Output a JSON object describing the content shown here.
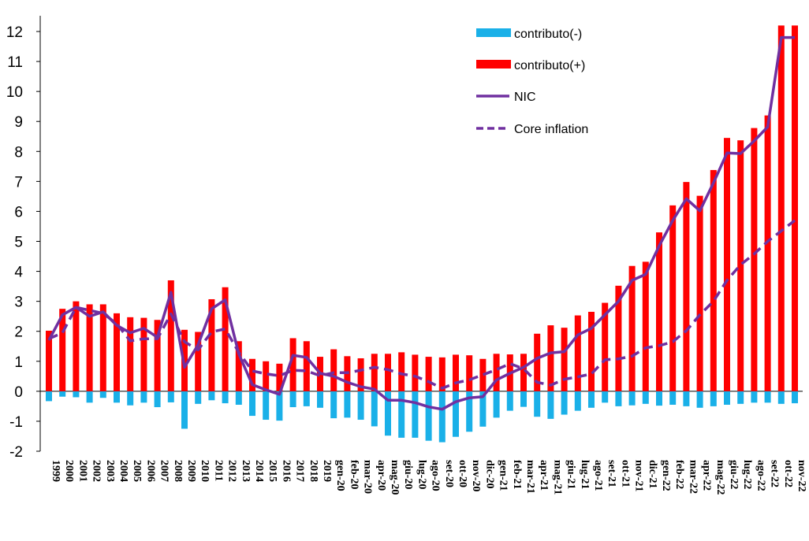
{
  "chart_data": {
    "type": "bar",
    "stacked_sign": true,
    "title": "",
    "xlabel": "",
    "ylabel": "",
    "ylim": [
      -2,
      12
    ],
    "yticks": [
      -2,
      -1,
      0,
      1,
      2,
      3,
      4,
      5,
      6,
      7,
      8,
      9,
      10,
      11,
      12
    ],
    "grid": false,
    "legend_position": "top-right",
    "categories": [
      "1999",
      "2000",
      "2001",
      "2002",
      "2003",
      "2004",
      "2005",
      "2006",
      "2007",
      "2008",
      "2009",
      "2010",
      "2011",
      "2012",
      "2013",
      "2014",
      "2015",
      "2016",
      "2017",
      "2018",
      "2019",
      "gen-20",
      "feb-20",
      "mar-20",
      "apr-20",
      "mag-20",
      "giu-20",
      "lug-20",
      "ago-20",
      "set-20",
      "ott-20",
      "nov-20",
      "dic-20",
      "gen-21",
      "feb-21",
      "mar-21",
      "apr-21",
      "mag-21",
      "giu-21",
      "lug-21",
      "ago-21",
      "set-21",
      "ott-21",
      "nov-21",
      "dic-21",
      "gen-22",
      "feb-22",
      "mar-22",
      "apr-22",
      "mag-22",
      "giu-22",
      "lug-22",
      "ago-22",
      "set-22",
      "ott-22",
      "nov-22"
    ],
    "series": [
      {
        "name": "contributo(-)",
        "kind": "bar",
        "color": "#1AB0E8",
        "values": [
          -0.33,
          -0.18,
          -0.2,
          -0.38,
          -0.22,
          -0.38,
          -0.47,
          -0.38,
          -0.53,
          -0.37,
          -1.25,
          -0.42,
          -0.3,
          -0.4,
          -0.45,
          -0.82,
          -0.95,
          -0.98,
          -0.53,
          -0.5,
          -0.55,
          -0.9,
          -0.88,
          -0.95,
          -1.17,
          -1.48,
          -1.55,
          -1.55,
          -1.65,
          -1.7,
          -1.52,
          -1.35,
          -1.18,
          -0.88,
          -0.65,
          -0.52,
          -0.85,
          -0.92,
          -0.78,
          -0.65,
          -0.55,
          -0.38,
          -0.5,
          -0.47,
          -0.42,
          -0.48,
          -0.45,
          -0.5,
          -0.55,
          -0.5,
          -0.45,
          -0.42,
          -0.38,
          -0.38,
          -0.42,
          -0.4
        ]
      },
      {
        "name": "contributo(+)",
        "kind": "bar",
        "color": "#FF0000",
        "values": [
          2.02,
          2.75,
          3.0,
          2.9,
          2.9,
          2.6,
          2.47,
          2.45,
          2.38,
          3.7,
          2.05,
          1.98,
          3.07,
          3.47,
          1.67,
          1.08,
          1.0,
          0.92,
          1.77,
          1.67,
          1.15,
          1.4,
          1.17,
          1.1,
          1.25,
          1.25,
          1.3,
          1.22,
          1.15,
          1.13,
          1.22,
          1.2,
          1.08,
          1.25,
          1.23,
          1.25,
          1.92,
          2.2,
          2.12,
          2.53,
          2.65,
          2.95,
          3.52,
          4.18,
          4.32,
          5.3,
          6.2,
          6.98,
          6.52,
          7.38,
          8.45,
          8.37,
          8.78,
          9.2,
          12.2,
          12.2
        ]
      },
      {
        "name": "NIC",
        "kind": "line",
        "color": "#7030A0",
        "values": [
          1.7,
          2.55,
          2.8,
          2.5,
          2.65,
          2.2,
          1.95,
          2.1,
          1.8,
          3.3,
          0.8,
          1.55,
          2.75,
          3.05,
          1.25,
          0.22,
          0.05,
          -0.1,
          1.2,
          1.13,
          0.6,
          0.5,
          0.3,
          0.15,
          0.07,
          -0.3,
          -0.3,
          -0.38,
          -0.52,
          -0.6,
          -0.35,
          -0.22,
          -0.18,
          0.38,
          0.6,
          0.8,
          1.1,
          1.28,
          1.32,
          1.88,
          2.1,
          2.55,
          3.0,
          3.7,
          3.9,
          4.85,
          5.7,
          6.42,
          6.02,
          6.95,
          7.95,
          7.93,
          8.35,
          8.82,
          11.8,
          11.8
        ]
      },
      {
        "name": "Core inflation",
        "kind": "line",
        "dashed": true,
        "color": "#7030A0",
        "values": [
          1.75,
          1.95,
          2.8,
          2.7,
          2.6,
          2.25,
          1.68,
          1.75,
          1.75,
          2.58,
          1.65,
          1.38,
          1.98,
          2.08,
          1.3,
          0.68,
          0.58,
          0.52,
          0.7,
          0.68,
          0.52,
          0.62,
          0.62,
          0.7,
          0.8,
          0.72,
          0.58,
          0.5,
          0.32,
          0.1,
          0.28,
          0.38,
          0.55,
          0.72,
          0.92,
          0.75,
          0.3,
          0.2,
          0.4,
          0.48,
          0.58,
          1.05,
          1.08,
          1.17,
          1.45,
          1.52,
          1.65,
          2.02,
          2.55,
          3.0,
          3.7,
          4.22,
          4.58,
          5.0,
          5.35,
          5.7
        ]
      }
    ]
  }
}
